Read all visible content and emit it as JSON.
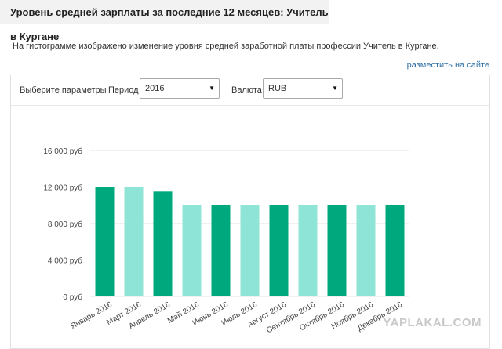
{
  "header": {
    "title": "Уровень средней зарплаты за последние 12 месяцев: Учитель в Кургане"
  },
  "description": "На гистограмме изображено изменение уровня средней заработной платы профессии Учитель в Кургане.",
  "embed_link": "разместить на сайте",
  "params": {
    "label": "Выберите параметры",
    "period_label": "Период",
    "period_value": "2016",
    "currency_label": "Валюта",
    "currency_value": "RUB"
  },
  "watermark": "YAPLAKAL.COM",
  "chart_data": {
    "type": "bar",
    "categories": [
      "Январь 2016",
      "Март 2016",
      "Апрель 2016",
      "Май 2016",
      "Июнь 2016",
      "Июль 2016",
      "Август 2016",
      "Сентябрь 2016",
      "Октябрь 2016",
      "Ноябрь 2016",
      "Декабрь 2016"
    ],
    "values": [
      12000,
      12000,
      11500,
      10000,
      10000,
      10050,
      10000,
      10000,
      10000,
      10000,
      10000
    ],
    "ylim": [
      0,
      16000
    ],
    "yticks": [
      0,
      4000,
      8000,
      12000,
      16000
    ],
    "ytick_labels": [
      "0 руб",
      "4 000 руб",
      "8 000 руб",
      "12 000 руб",
      "16 000 руб"
    ],
    "colors": [
      "#00a87e",
      "#8ee4d6"
    ],
    "grid": true
  }
}
